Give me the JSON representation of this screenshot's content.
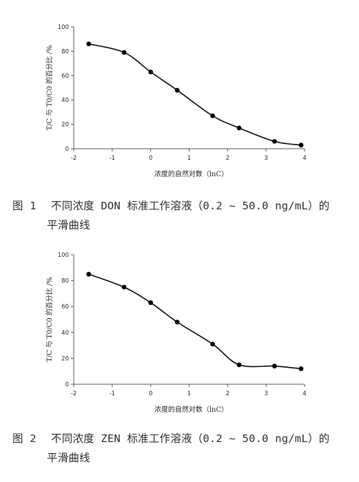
{
  "chart_data": [
    {
      "type": "line",
      "x": [
        -1.61,
        -0.69,
        0.0,
        0.69,
        1.61,
        2.3,
        3.22,
        3.91
      ],
      "series": [
        {
          "values": [
            86,
            79,
            63,
            48,
            27,
            17,
            6,
            3
          ]
        }
      ],
      "xlabel": "浓度的自然对数（lnC）",
      "ylabel": "T/C 与 T0/C0 的百分比 /%",
      "xlim": [
        -2,
        4
      ],
      "ylim": [
        0,
        100
      ],
      "xticks": [
        "-2",
        "-1",
        "0",
        "1",
        "2",
        "3",
        "4"
      ],
      "yticks": [
        "0",
        "20",
        "40",
        "60",
        "80",
        "100"
      ],
      "grid": false,
      "color": "#000000"
    },
    {
      "type": "line",
      "x": [
        -1.61,
        -0.69,
        0.0,
        0.69,
        1.61,
        2.3,
        3.22,
        3.91
      ],
      "series": [
        {
          "values": [
            85,
            75,
            63,
            48,
            31,
            15,
            14,
            12
          ]
        }
      ],
      "xlabel": "浓度的自然对数（lnC）",
      "ylabel": "T/C 与 T0/C0 的百分比 /%",
      "xlim": [
        -2,
        4
      ],
      "ylim": [
        0,
        100
      ],
      "xticks": [
        "-2",
        "-1",
        "0",
        "1",
        "2",
        "3",
        "4"
      ],
      "yticks": [
        "0",
        "20",
        "40",
        "60",
        "80",
        "100"
      ],
      "grid": false,
      "color": "#000000"
    }
  ],
  "captions": [
    {
      "number": "图 1",
      "line1": "不同浓度 DON 标准工作溶液（0.2 ~ 50.0 ng/mL）的",
      "line2": "平滑曲线"
    },
    {
      "number": "图 2",
      "line1": "不同浓度 ZEN 标准工作溶液（0.2 ~ 50.0 ng/mL）的",
      "line2": "平滑曲线"
    }
  ]
}
